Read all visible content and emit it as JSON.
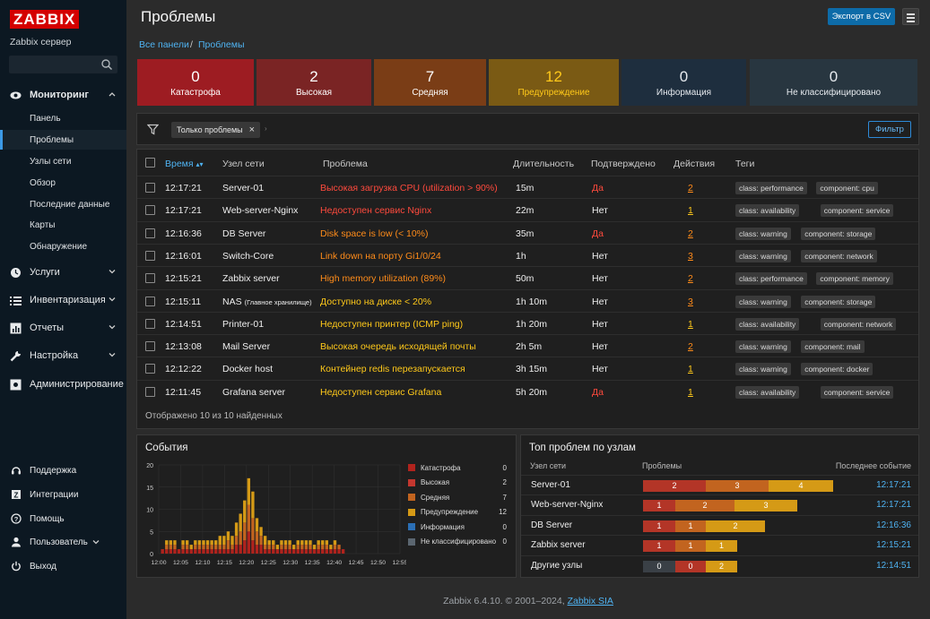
{
  "sidebar": {
    "logo": "ZABBIX",
    "server": "Zabbix сервер",
    "menu": [
      {
        "label": "Мониторинг",
        "icon": "eye-icon",
        "expanded": true
      },
      {
        "label": "Услуги",
        "icon": "clock-icon"
      },
      {
        "label": "Инвентаризация",
        "icon": "list-icon"
      },
      {
        "label": "Отчеты",
        "icon": "report-icon"
      },
      {
        "label": "Настройка",
        "icon": "wrench-icon"
      },
      {
        "label": "Администрирование",
        "icon": "admin-icon"
      }
    ],
    "submenu": [
      "Панель",
      "Проблемы",
      "Узлы сети",
      "Обзор",
      "Последние данные",
      "Карты",
      "Обнаружение"
    ],
    "bottom": [
      {
        "label": "Поддержка",
        "icon": "headset-icon"
      },
      {
        "label": "Интеграции",
        "icon": "integrations-icon"
      },
      {
        "label": "Помощь",
        "icon": "help-icon"
      },
      {
        "label": "Пользователь",
        "icon": "user-icon"
      },
      {
        "label": "Выход",
        "icon": "power-icon"
      }
    ]
  },
  "header": {
    "title": "Проблемы",
    "export": "Экспорт в CSV"
  },
  "breadcrumb": [
    "Все панели",
    "Проблемы"
  ],
  "severity": [
    {
      "count": "0",
      "label": "Катастрофа",
      "bg": "#9d1c22",
      "fg": "#ffffff"
    },
    {
      "count": "2",
      "label": "Высокая",
      "bg": "#7a2424",
      "fg": "#ffffff"
    },
    {
      "count": "7",
      "label": "Средняя",
      "bg": "#7a3d16",
      "fg": "#ffffff"
    },
    {
      "count": "12",
      "label": "Предупреждение",
      "bg": "#7a5a14",
      "fg": "#ffc91a"
    },
    {
      "count": "0",
      "label": "Информация",
      "bg": "#1e2e3e",
      "fg": "#e6eaee"
    },
    {
      "count": "0",
      "label": "Не классифицировано",
      "bg": "#283640",
      "fg": "#e6eaee"
    }
  ],
  "filter": {
    "chip": "Только проблемы",
    "button": "Фильтр"
  },
  "table": {
    "headers": {
      "time": "Время",
      "host": "Узел сети",
      "problem": "Проблема",
      "duration": "Длительность",
      "ack": "Подтверждено",
      "actions": "Действия",
      "tags": "Теги"
    },
    "rows": [
      {
        "time": "12:17:21",
        "host": "Server-01",
        "hostsub": "",
        "problem": "Высокая загрузка CPU (utilization > 90%)",
        "pcolor": "#ff4a3d",
        "duration": "15m",
        "ack": "Да",
        "ackcolor": "#ff4a3d",
        "actions": "2",
        "tags": [
          "class: performance",
          "component: cpu"
        ]
      },
      {
        "time": "12:17:21",
        "host": "Web-server-Nginx",
        "hostsub": "",
        "problem": "Недоступен сервис Nginx",
        "pcolor": "#ff4a3d",
        "duration": "22m",
        "ack": "Нет",
        "ackcolor": "#eeeeee",
        "actions": "1",
        "tags": [
          "class: availability",
          "component: service"
        ]
      },
      {
        "time": "12:16:36",
        "host": "DB Server",
        "hostsub": "",
        "problem": "Disk space is low (< 10%)",
        "pcolor": "#ff8c1a",
        "duration": "35m",
        "ack": "Да",
        "ackcolor": "#ff4a3d",
        "actions": "2",
        "tags": [
          "class: warning",
          "component: storage"
        ]
      },
      {
        "time": "12:16:01",
        "host": "Switch-Core",
        "hostsub": "",
        "problem": "Link down на порту Gi1/0/24",
        "pcolor": "#ff8c1a",
        "duration": "1h",
        "ack": "Нет",
        "ackcolor": "#eeeeee",
        "actions": "3",
        "tags": [
          "class: warning",
          "component: network"
        ]
      },
      {
        "time": "12:15:21",
        "host": "Zabbix server",
        "hostsub": "",
        "problem": "High memory utilization (89%)",
        "pcolor": "#ff8c1a",
        "duration": "50m",
        "ack": "Нет",
        "ackcolor": "#eeeeee",
        "actions": "2",
        "tags": [
          "class: performance",
          "component: memory"
        ]
      },
      {
        "time": "12:15:11",
        "host": "NAS",
        "hostsub": "(Главное хранилище)",
        "problem": "Доступно на диске < 20%",
        "pcolor": "#ffc91a",
        "duration": "1h 10m",
        "ack": "Нет",
        "ackcolor": "#eeeeee",
        "actions": "3",
        "tags": [
          "class: warning",
          "component: storage"
        ]
      },
      {
        "time": "12:14:51",
        "host": "Printer-01",
        "hostsub": "",
        "problem": "Недоступен принтер (ICMP ping)",
        "pcolor": "#ffc91a",
        "duration": "1h 20m",
        "ack": "Нет",
        "ackcolor": "#eeeeee",
        "actions": "1",
        "tags": [
          "class: availability",
          "component: network"
        ]
      },
      {
        "time": "12:13:08",
        "host": "Mail Server",
        "hostsub": "",
        "problem": "Высокая очередь исходящей почты",
        "pcolor": "#ffc91a",
        "duration": "2h 5m",
        "ack": "Нет",
        "ackcolor": "#eeeeee",
        "actions": "2",
        "tags": [
          "class: warning",
          "component: mail"
        ]
      },
      {
        "time": "12:12:22",
        "host": "Docker host",
        "hostsub": "",
        "problem": "Контейнер redis перезапускается",
        "pcolor": "#ffc91a",
        "duration": "3h 15m",
        "ack": "Нет",
        "ackcolor": "#eeeeee",
        "actions": "1",
        "tags": [
          "class: warning",
          "component: docker"
        ]
      },
      {
        "time": "12:11:45",
        "host": "Grafana server",
        "hostsub": "",
        "problem": "Недоступен сервис Grafana",
        "pcolor": "#ffc91a",
        "duration": "5h 20m",
        "ack": "Да",
        "ackcolor": "#ff4a3d",
        "actions": "1",
        "tags": [
          "class: availability",
          "component: service"
        ]
      }
    ],
    "footer": "Отображено 10 из 10 найденных"
  },
  "events": {
    "title": "События",
    "legend": [
      {
        "label": "Катастрофа",
        "value": "0",
        "color": "#b0231d"
      },
      {
        "label": "Высокая",
        "value": "2",
        "color": "#c4372f"
      },
      {
        "label": "Средняя",
        "value": "7",
        "color": "#c2641f"
      },
      {
        "label": "Предупреждение",
        "value": "12",
        "color": "#d59a16"
      },
      {
        "label": "Информация",
        "value": "0",
        "color": "#2b6fb5"
      },
      {
        "label": "Не классифицировано",
        "value": "0",
        "color": "#5b6670"
      }
    ]
  },
  "chart_data": {
    "type": "bar",
    "stacked": true,
    "title": "",
    "ylim": [
      0,
      20
    ],
    "yticks": [
      "0",
      "5",
      "10",
      "15",
      "20"
    ],
    "xticks": [
      "12:00",
      "12:05",
      "12:10",
      "12:15",
      "12:20",
      "12:25",
      "12:30",
      "12:35",
      "12:40",
      "12:45",
      "12:50",
      "12:55"
    ],
    "series": [
      {
        "color": "#b0231d",
        "values": [
          1,
          1,
          1,
          1,
          1,
          1,
          1,
          1,
          1,
          1,
          1,
          1,
          1,
          1,
          1,
          1,
          1,
          1,
          2,
          2,
          3,
          5,
          3,
          2,
          2,
          1,
          1,
          1,
          1,
          1,
          1,
          1,
          1,
          1,
          1,
          1,
          1,
          1,
          1,
          1,
          1,
          1,
          1,
          1,
          1
        ]
      },
      {
        "color": "#c2641f",
        "values": [
          0,
          1,
          1,
          1,
          0,
          1,
          1,
          0,
          1,
          1,
          1,
          1,
          1,
          1,
          1,
          1,
          2,
          1,
          2,
          3,
          4,
          6,
          5,
          3,
          2,
          1,
          1,
          1,
          0,
          1,
          1,
          1,
          0,
          1,
          1,
          1,
          1,
          0,
          1,
          1,
          1,
          0,
          1,
          1,
          0
        ]
      },
      {
        "color": "#d59a16",
        "values": [
          0,
          1,
          1,
          1,
          0,
          1,
          1,
          1,
          1,
          1,
          1,
          1,
          1,
          1,
          2,
          2,
          2,
          2,
          3,
          4,
          5,
          6,
          6,
          3,
          2,
          2,
          1,
          1,
          1,
          1,
          1,
          1,
          1,
          1,
          1,
          1,
          1,
          1,
          1,
          1,
          1,
          1,
          1,
          0,
          0
        ]
      }
    ]
  },
  "topHosts": {
    "title": "Топ проблем по узлам",
    "headers": {
      "host": "Узел сети",
      "problems": "Проблемы",
      "last": "Последнее событие"
    },
    "rows": [
      {
        "host": "Server-01",
        "time": "12:17:21",
        "bars": [
          {
            "v": "2",
            "w": 70,
            "c": "#b33527"
          },
          {
            "v": "3",
            "w": 70,
            "c": "#c2641f"
          },
          {
            "v": "4",
            "w": 72,
            "c": "#d59a16"
          }
        ]
      },
      {
        "host": "Web-server-Nginx",
        "time": "12:17:21",
        "bars": [
          {
            "v": "1",
            "w": 36,
            "c": "#b33527"
          },
          {
            "v": "2",
            "w": 66,
            "c": "#c2641f"
          },
          {
            "v": "3",
            "w": 70,
            "c": "#d59a16"
          }
        ]
      },
      {
        "host": "DB Server",
        "time": "12:16:36",
        "bars": [
          {
            "v": "1",
            "w": 36,
            "c": "#b33527"
          },
          {
            "v": "1",
            "w": 34,
            "c": "#c2641f"
          },
          {
            "v": "2",
            "w": 66,
            "c": "#d59a16"
          }
        ]
      },
      {
        "host": "Zabbix server",
        "time": "12:15:21",
        "bars": [
          {
            "v": "1",
            "w": 36,
            "c": "#b33527"
          },
          {
            "v": "1",
            "w": 34,
            "c": "#c2641f"
          },
          {
            "v": "1",
            "w": 35,
            "c": "#d59a16"
          }
        ]
      },
      {
        "host": "Другие узлы",
        "time": "12:14:51",
        "bars": [
          {
            "v": "0",
            "w": 36,
            "c": "#3a4046"
          },
          {
            "v": "0",
            "w": 34,
            "c": "#b33527"
          },
          {
            "v": "2",
            "w": 35,
            "c": "#d59a16"
          }
        ]
      }
    ]
  },
  "footer": {
    "text": "Zabbix 6.4.10. © 2001–2024,",
    "link": "Zabbix SIA"
  }
}
